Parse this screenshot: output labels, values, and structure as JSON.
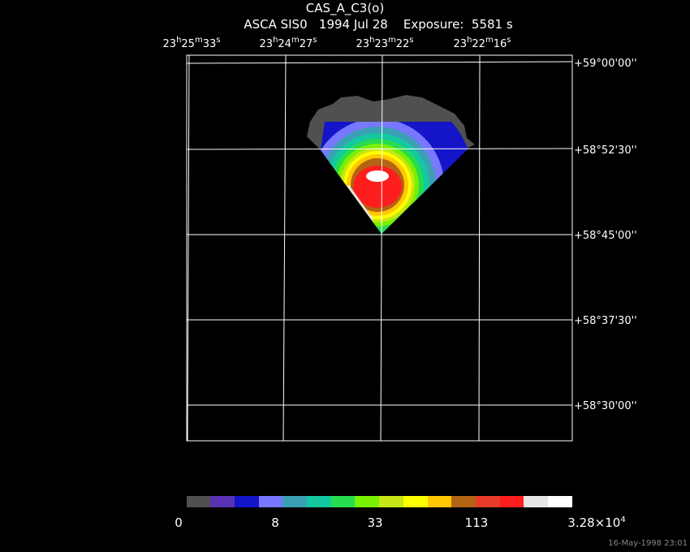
{
  "header": {
    "title": "CAS_A_C3(o)",
    "subtitle": "ASCA SIS0   1994 Jul 28    Exposure:  5581 s"
  },
  "ra_labels": [
    [
      "23",
      "h",
      "25",
      "m",
      "33",
      "s"
    ],
    [
      "23",
      "h",
      "24",
      "m",
      "27",
      "s"
    ],
    [
      "23",
      "h",
      "23",
      "m",
      "22",
      "s"
    ],
    [
      "23",
      "h",
      "22",
      "m",
      "16",
      "s"
    ]
  ],
  "dec_labels": [
    "+59°00'00''",
    "+58°52'30''",
    "+58°45'00''",
    "+58°37'30''",
    "+58°30'00''"
  ],
  "colorbar": {
    "labels": [
      "0",
      "8",
      "33",
      "113",
      [
        "3.28×10",
        "4"
      ]
    ]
  },
  "footer": "16-May-1998 23:01"
}
